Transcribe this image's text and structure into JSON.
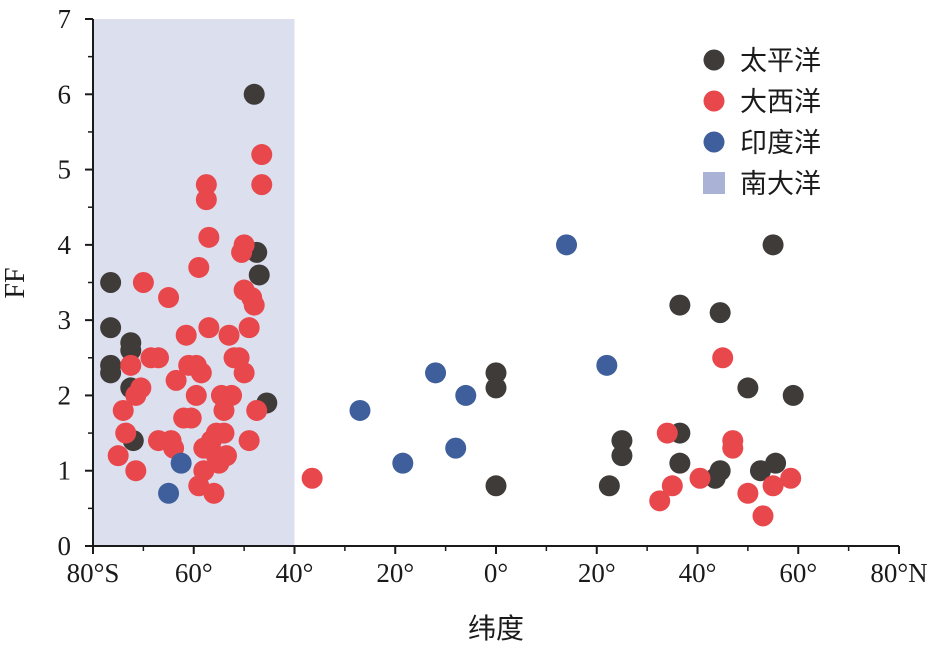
{
  "chart_data": {
    "type": "scatter",
    "title": "",
    "xlabel": "纬度",
    "ylabel": "FF",
    "xlim": [
      -80,
      80
    ],
    "ylim": [
      0,
      7
    ],
    "x_ticks": [
      {
        "value": -80,
        "label": "80°S"
      },
      {
        "value": -60,
        "label": "60°"
      },
      {
        "value": -40,
        "label": "40°"
      },
      {
        "value": -20,
        "label": "20°"
      },
      {
        "value": 0,
        "label": "0°"
      },
      {
        "value": 20,
        "label": "20°"
      },
      {
        "value": 40,
        "label": "40°"
      },
      {
        "value": 60,
        "label": "60°"
      },
      {
        "value": 80,
        "label": "80°N"
      }
    ],
    "y_ticks": [
      {
        "value": 0,
        "label": "0"
      },
      {
        "value": 1,
        "label": "1"
      },
      {
        "value": 2,
        "label": "2"
      },
      {
        "value": 3,
        "label": "3"
      },
      {
        "value": 4,
        "label": "4"
      },
      {
        "value": 5,
        "label": "5"
      },
      {
        "value": 6,
        "label": "6"
      },
      {
        "value": 7,
        "label": "7"
      }
    ],
    "grid": false,
    "legend_position": "top-right",
    "shaded_region": {
      "name": "南大洋",
      "x_range": [
        -80,
        -40
      ],
      "color": "#dcdfee",
      "legend_color": "#aab2d6"
    },
    "series": [
      {
        "name": "太平洋",
        "color": "#3f3b39",
        "points": [
          [
            -76.5,
            3.5
          ],
          [
            -76.5,
            2.9
          ],
          [
            -76.5,
            2.4
          ],
          [
            -76.5,
            2.3
          ],
          [
            -72.5,
            2.7
          ],
          [
            -72.5,
            2.6
          ],
          [
            -72.5,
            2.1
          ],
          [
            -72,
            1.4
          ],
          [
            -48,
            6.0
          ],
          [
            -47.5,
            3.9
          ],
          [
            -47,
            3.6
          ],
          [
            -45.5,
            1.9
          ],
          [
            0,
            2.3
          ],
          [
            0,
            2.1
          ],
          [
            0,
            0.8
          ],
          [
            22.5,
            0.8
          ],
          [
            25,
            1.4
          ],
          [
            25,
            1.2
          ],
          [
            36.5,
            3.2
          ],
          [
            36.5,
            1.5
          ],
          [
            36.5,
            1.1
          ],
          [
            44.5,
            3.1
          ],
          [
            44.5,
            1.0
          ],
          [
            43.5,
            0.9
          ],
          [
            50,
            2.1
          ],
          [
            52.5,
            1.0
          ],
          [
            55.5,
            1.1
          ],
          [
            55,
            4.0
          ],
          [
            59,
            2.0
          ]
        ]
      },
      {
        "name": "大西洋",
        "color": "#e8474b",
        "points": [
          [
            -75,
            1.2
          ],
          [
            -74,
            1.8
          ],
          [
            -73.5,
            1.5
          ],
          [
            -72.5,
            2.4
          ],
          [
            -71.5,
            2.0
          ],
          [
            -70.5,
            2.1
          ],
          [
            -71.5,
            1.0
          ],
          [
            -70,
            3.5
          ],
          [
            -68.5,
            2.5
          ],
          [
            -67,
            2.5
          ],
          [
            -67,
            1.4
          ],
          [
            -65,
            3.3
          ],
          [
            -64.5,
            1.4
          ],
          [
            -64,
            1.3
          ],
          [
            -63.5,
            2.2
          ],
          [
            -62,
            1.7
          ],
          [
            -61.5,
            2.8
          ],
          [
            -61,
            2.4
          ],
          [
            -60.5,
            1.7
          ],
          [
            -59.5,
            2.4
          ],
          [
            -59.5,
            2.0
          ],
          [
            -59,
            3.7
          ],
          [
            -59,
            0.8
          ],
          [
            -58.5,
            2.3
          ],
          [
            -58,
            1.3
          ],
          [
            -58,
            1.0
          ],
          [
            -57.5,
            4.8
          ],
          [
            -57.5,
            4.6
          ],
          [
            -57,
            4.1
          ],
          [
            -57,
            2.9
          ],
          [
            -56.5,
            1.4
          ],
          [
            -56,
            0.7
          ],
          [
            -55.5,
            1.5
          ],
          [
            -55.5,
            1.2
          ],
          [
            -55,
            1.1
          ],
          [
            -54.5,
            2.0
          ],
          [
            -54,
            1.8
          ],
          [
            -54,
            1.5
          ],
          [
            -53.5,
            1.2
          ],
          [
            -53,
            2.8
          ],
          [
            -52.5,
            2.0
          ],
          [
            -52,
            2.5
          ],
          [
            -51,
            2.5
          ],
          [
            -50.5,
            3.9
          ],
          [
            -50,
            4.0
          ],
          [
            -50,
            3.4
          ],
          [
            -50,
            2.3
          ],
          [
            -49,
            2.9
          ],
          [
            -49,
            1.4
          ],
          [
            -48.5,
            3.3
          ],
          [
            -48,
            3.2
          ],
          [
            -47.5,
            1.8
          ],
          [
            -46.5,
            5.2
          ],
          [
            -46.5,
            4.8
          ],
          [
            -36.5,
            0.9
          ],
          [
            32.5,
            0.6
          ],
          [
            34,
            1.5
          ],
          [
            35,
            0.8
          ],
          [
            40.5,
            0.9
          ],
          [
            45,
            2.5
          ],
          [
            47,
            1.4
          ],
          [
            47,
            1.3
          ],
          [
            50,
            0.7
          ],
          [
            53,
            0.4
          ],
          [
            55,
            0.8
          ],
          [
            58.5,
            0.9
          ]
        ]
      },
      {
        "name": "印度洋",
        "color": "#3e5f9c",
        "points": [
          [
            -65,
            0.7
          ],
          [
            -62.5,
            1.1
          ],
          [
            -27,
            1.8
          ],
          [
            -18.5,
            1.1
          ],
          [
            -12,
            2.3
          ],
          [
            -8,
            1.3
          ],
          [
            -6,
            2.0
          ],
          [
            14,
            4.0
          ],
          [
            22,
            2.4
          ]
        ]
      }
    ],
    "legend": [
      {
        "label": "太平洋",
        "marker": "circle",
        "color": "#3f3b39"
      },
      {
        "label": "大西洋",
        "marker": "circle",
        "color": "#e8474b"
      },
      {
        "label": "印度洋",
        "marker": "circle",
        "color": "#3e5f9c"
      },
      {
        "label": "南大洋",
        "marker": "square",
        "color": "#aab2d6"
      }
    ]
  }
}
